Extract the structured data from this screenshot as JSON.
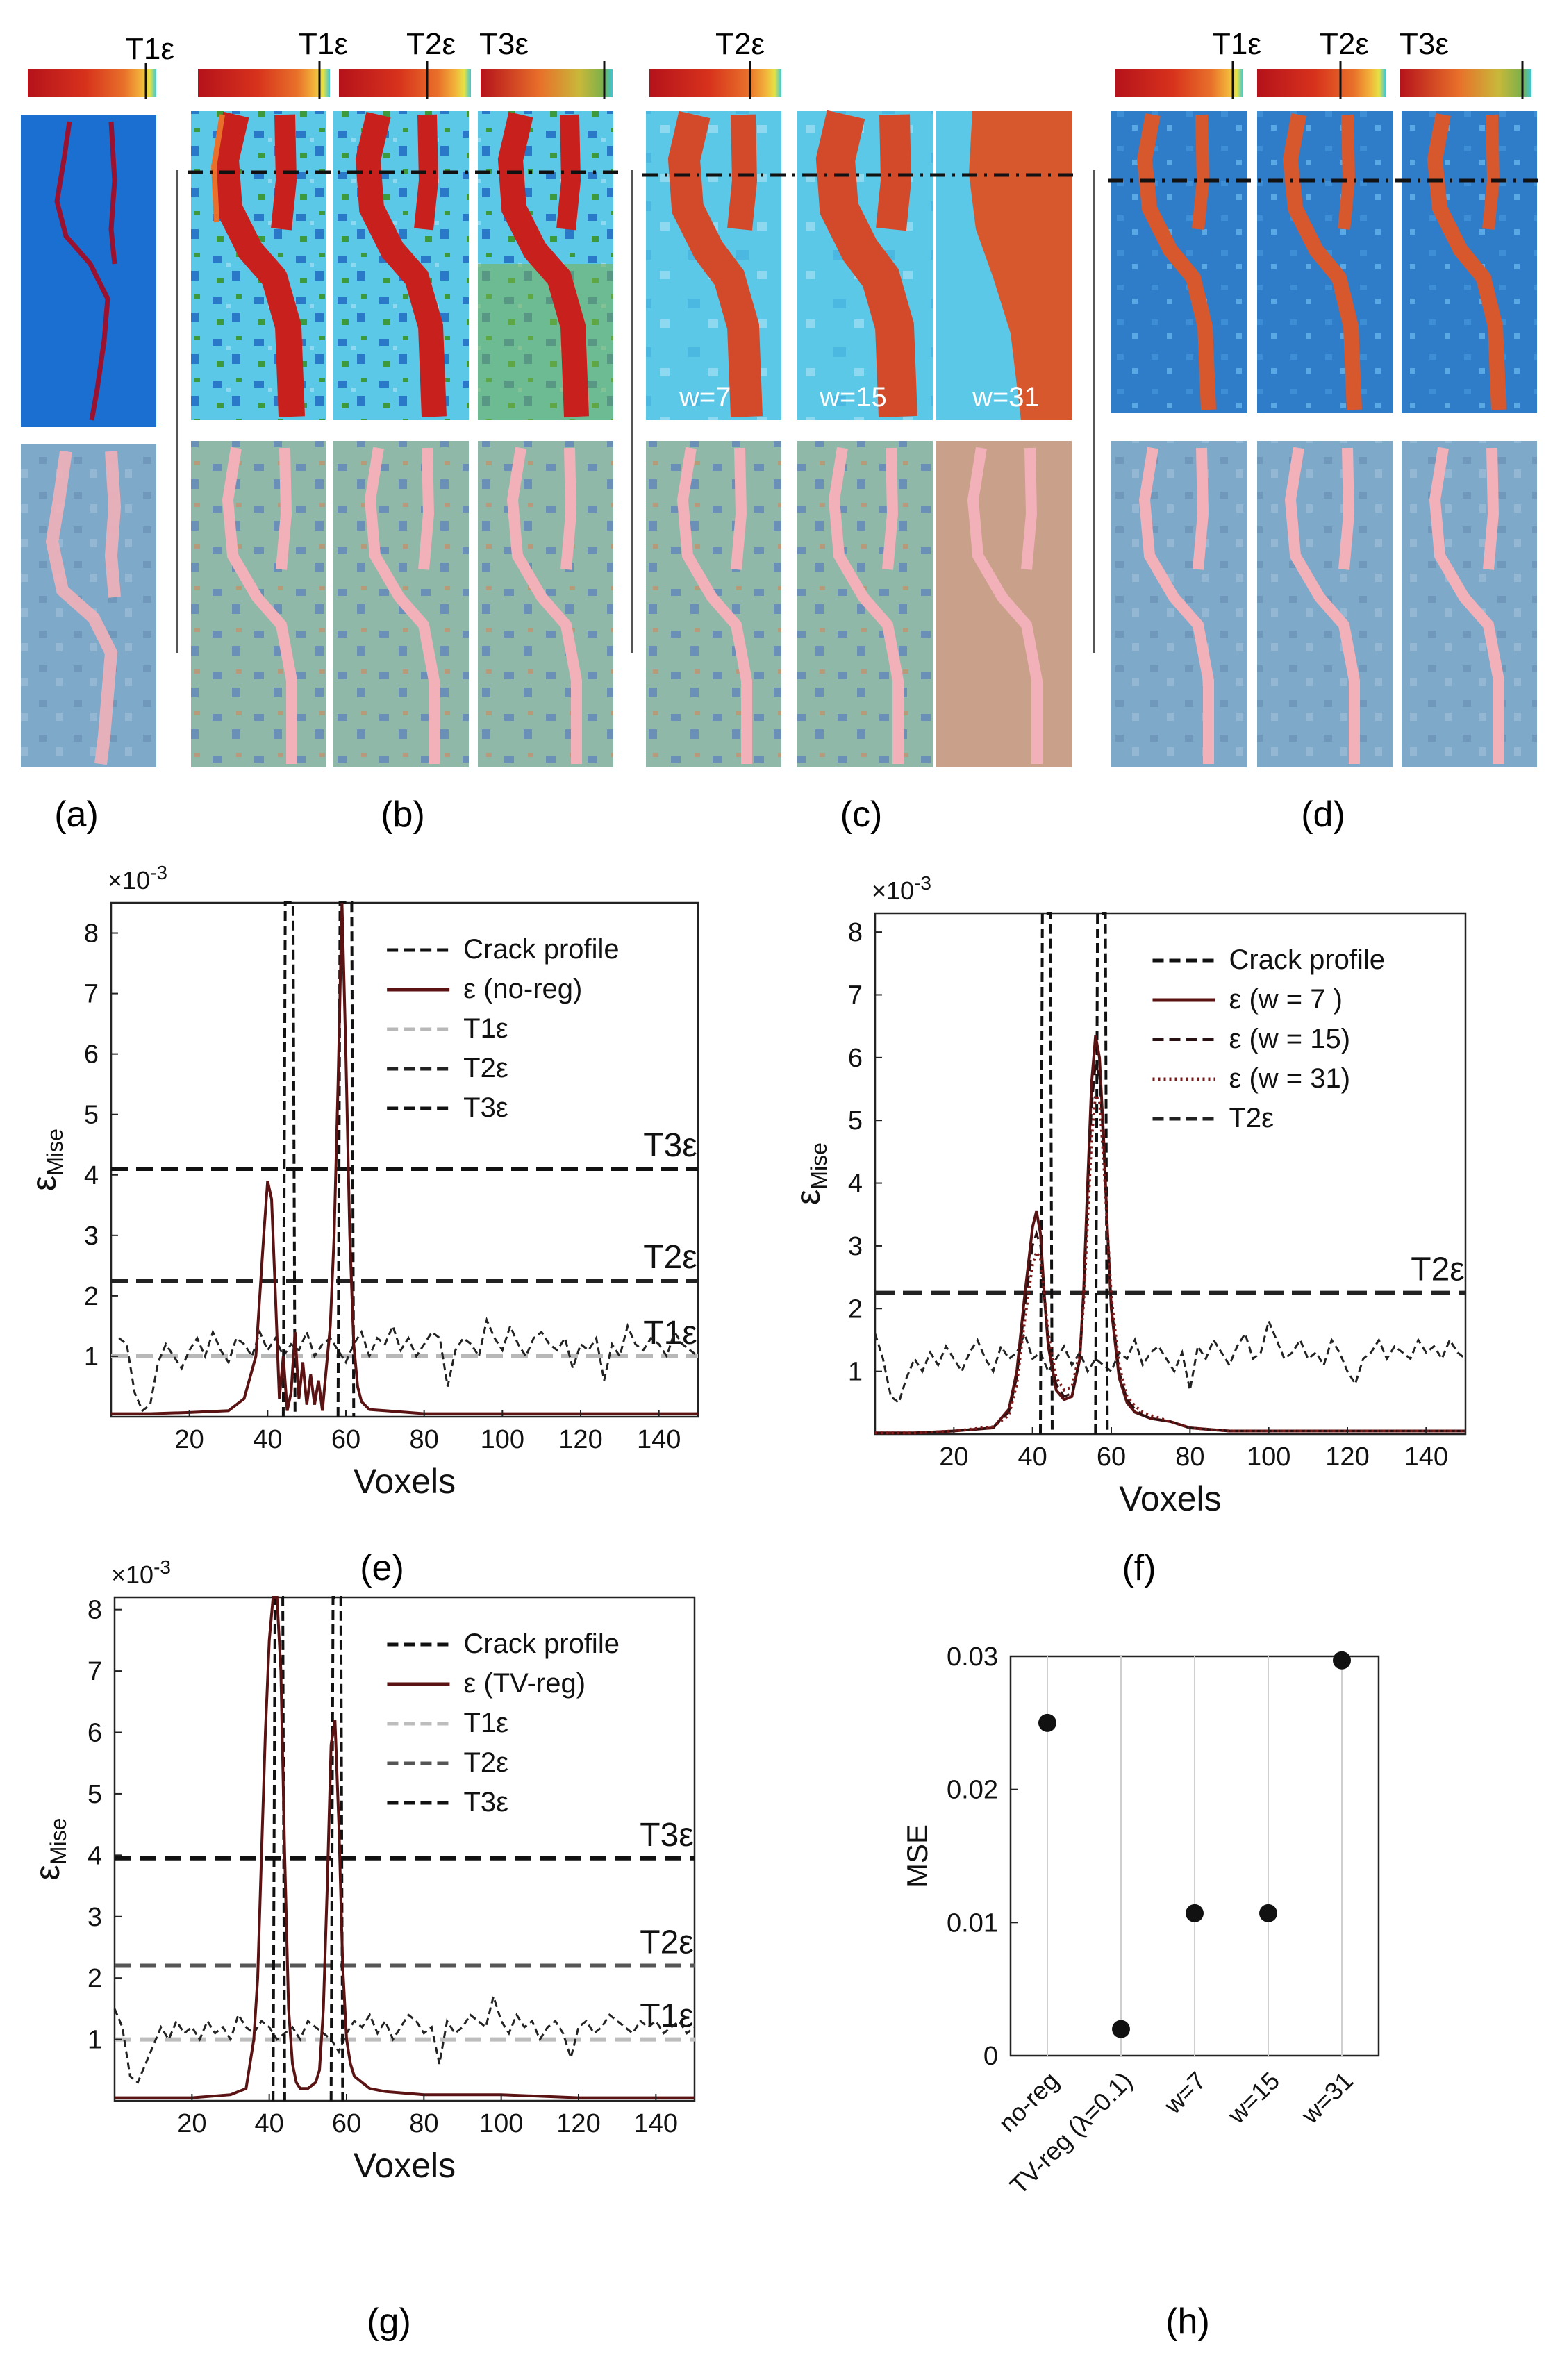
{
  "panel_labels": {
    "a": "(a)",
    "b": "(b)",
    "c": "(c)",
    "d": "(d)",
    "e": "(e)",
    "f": "(f)",
    "g": "(g)",
    "h": "(h)"
  },
  "images": {
    "colorbar_labels": {
      "a": [
        "T1ε"
      ],
      "b": [
        "T1ε",
        "T2ε",
        "T3ε"
      ],
      "c": [
        "T2ε"
      ],
      "d": [
        "T1ε",
        "T2ε",
        "T3ε"
      ]
    },
    "c_window_labels": [
      "w=7",
      "w=15",
      "w=31"
    ],
    "colors": {
      "hot": "#c8201c",
      "warm": "#e8702a",
      "cyan": "#5cc8e8",
      "blue": "#1a6fd0",
      "green": "#7bb04a",
      "mask": "#f2b0b8"
    }
  },
  "chart_data": [
    {
      "id": "e",
      "type": "line",
      "xlabel": "Voxels",
      "ylabel": "εMise",
      "y_exponent": "×10-3",
      "xlim": [
        0,
        150
      ],
      "ylim": [
        0,
        8.5
      ],
      "xticks": [
        20,
        40,
        60,
        80,
        100,
        120,
        140
      ],
      "yticks": [
        1,
        2,
        3,
        4,
        5,
        6,
        7,
        8
      ],
      "legend": [
        "Crack profile",
        "ε (no-reg)",
        "T1ε",
        "T2ε",
        "T3ε"
      ],
      "threshold_labels": [
        "T1ε",
        "T2ε",
        "T3ε"
      ],
      "thresholds": [
        1.0,
        2.25,
        4.1
      ],
      "crack_profile": {
        "x": [
          44,
          44.5,
          46.5,
          47,
          58,
          58.5,
          61.5,
          62
        ],
        "y": [
          0,
          8.5,
          8.5,
          0,
          0,
          8.5,
          8.5,
          0
        ]
      },
      "noise": {
        "x": [
          2,
          4,
          6,
          8,
          10,
          12,
          14,
          16,
          18,
          20,
          22,
          24,
          26,
          28,
          30,
          32,
          34,
          36,
          38,
          40,
          42,
          44,
          46,
          48,
          50,
          52,
          54,
          56,
          58,
          60,
          62,
          64,
          66,
          68,
          70,
          72,
          74,
          76,
          78,
          80,
          82,
          84,
          86,
          88,
          90,
          92,
          94,
          96,
          98,
          100,
          102,
          104,
          106,
          108,
          110,
          112,
          114,
          116,
          118,
          120,
          122,
          124,
          126,
          128,
          130,
          132,
          134,
          136,
          138,
          140,
          142,
          144,
          146,
          148,
          150
        ],
        "y": [
          1.3,
          1.2,
          0.4,
          0.1,
          0.2,
          0.9,
          1.2,
          1.0,
          0.8,
          1.1,
          1.3,
          1.0,
          1.4,
          1.1,
          0.9,
          1.3,
          1.2,
          1.0,
          1.4,
          1.1,
          1.3,
          1.0,
          1.2,
          1.1,
          1.4,
          1.0,
          1.2,
          1.3,
          1.1,
          0.9,
          1.2,
          1.4,
          1.0,
          1.3,
          1.2,
          1.5,
          1.1,
          1.3,
          1.0,
          1.2,
          1.4,
          1.3,
          0.5,
          1.1,
          1.3,
          1.2,
          1.0,
          1.6,
          1.3,
          1.1,
          1.5,
          1.2,
          1.0,
          1.3,
          1.4,
          1.2,
          1.1,
          1.3,
          0.8,
          1.2,
          1.1,
          1.3,
          0.6,
          1.2,
          1.0,
          1.5,
          1.2,
          1.1,
          1.3,
          1.2,
          1.0,
          1.4,
          1.2,
          1.1,
          1.0
        ]
      },
      "series": [
        {
          "name": "ε (no-reg)",
          "x": [
            0,
            10,
            20,
            30,
            34,
            37,
            39,
            40,
            41,
            42,
            43,
            44,
            45,
            46,
            47,
            48,
            49,
            50,
            51,
            52,
            53,
            54,
            55,
            56,
            57,
            58,
            59,
            60,
            61,
            62,
            63,
            64,
            66,
            70,
            80,
            100,
            120,
            140,
            150
          ],
          "y": [
            0.05,
            0.05,
            0.07,
            0.1,
            0.3,
            1.0,
            3.0,
            3.9,
            3.6,
            2.0,
            0.3,
            1.0,
            0.1,
            0.4,
            1.4,
            0.3,
            0.9,
            0.2,
            0.7,
            0.2,
            0.6,
            0.1,
            0.8,
            1.5,
            3.0,
            5.5,
            8.5,
            6.0,
            3.0,
            1.2,
            0.5,
            0.25,
            0.12,
            0.1,
            0.05,
            0.05,
            0.05,
            0.05,
            0.05
          ]
        }
      ]
    },
    {
      "id": "f",
      "type": "line",
      "xlabel": "Voxels",
      "ylabel": "εMise",
      "y_exponent": "×10-3",
      "xlim": [
        0,
        150
      ],
      "ylim": [
        0,
        8.3
      ],
      "xticks": [
        20,
        40,
        60,
        80,
        100,
        120,
        140
      ],
      "yticks": [
        1,
        2,
        3,
        4,
        5,
        6,
        7,
        8
      ],
      "legend": [
        "Crack profile",
        "ε (w = 7 )",
        "ε (w = 15)",
        "ε (w = 31)",
        "T2ε"
      ],
      "threshold_labels": [
        "T2ε"
      ],
      "thresholds": [
        2.25
      ],
      "crack_profile": {
        "x": [
          42,
          42.5,
          44.5,
          45,
          56,
          56.5,
          58.5,
          59
        ],
        "y": [
          0,
          8.3,
          8.3,
          0,
          0,
          8.3,
          8.3,
          0
        ]
      },
      "noise": {
        "x": [
          0,
          2,
          4,
          6,
          8,
          10,
          12,
          14,
          16,
          18,
          20,
          22,
          24,
          26,
          28,
          30,
          32,
          34,
          36,
          38,
          40,
          42,
          44,
          46,
          48,
          50,
          52,
          54,
          56,
          58,
          60,
          62,
          64,
          66,
          68,
          70,
          72,
          74,
          76,
          78,
          80,
          82,
          84,
          86,
          88,
          90,
          92,
          94,
          96,
          98,
          100,
          102,
          104,
          106,
          108,
          110,
          112,
          114,
          116,
          118,
          120,
          122,
          124,
          126,
          128,
          130,
          132,
          134,
          136,
          138,
          140,
          142,
          144,
          146,
          148,
          150
        ],
        "y": [
          1.6,
          1.2,
          0.6,
          0.5,
          0.9,
          1.2,
          1.0,
          1.3,
          1.1,
          1.4,
          1.2,
          1.0,
          1.3,
          1.5,
          1.2,
          1.0,
          1.4,
          1.2,
          1.3,
          1.6,
          1.2,
          1.3,
          1.0,
          1.2,
          1.4,
          1.1,
          1.3,
          1.0,
          1.2,
          1.1,
          1.0,
          1.3,
          1.2,
          1.5,
          1.1,
          1.3,
          1.4,
          1.2,
          1.0,
          1.3,
          0.7,
          1.4,
          1.2,
          1.5,
          1.3,
          1.1,
          1.4,
          1.6,
          1.2,
          1.3,
          1.8,
          1.5,
          1.2,
          1.3,
          1.5,
          1.2,
          1.3,
          1.1,
          1.5,
          1.3,
          1.0,
          0.8,
          1.2,
          1.3,
          1.5,
          1.2,
          1.4,
          1.3,
          1.2,
          1.5,
          1.3,
          1.4,
          1.2,
          1.5,
          1.3,
          1.2
        ]
      },
      "series": [
        {
          "name": "ε (w = 7 )",
          "x": [
            0,
            10,
            20,
            30,
            34,
            36,
            38,
            40,
            41,
            42,
            43,
            44,
            46,
            48,
            50,
            52,
            53,
            54,
            55,
            56,
            57,
            58,
            59,
            60,
            62,
            64,
            66,
            68,
            70,
            75,
            80,
            90,
            100,
            120,
            140,
            150
          ],
          "y": [
            0.02,
            0.02,
            0.05,
            0.1,
            0.4,
            1.0,
            2.2,
            3.3,
            3.55,
            3.2,
            2.2,
            1.4,
            0.7,
            0.55,
            0.6,
            1.2,
            2.3,
            4.0,
            5.6,
            6.35,
            6.0,
            4.8,
            3.3,
            2.0,
            0.9,
            0.5,
            0.35,
            0.3,
            0.25,
            0.2,
            0.1,
            0.05,
            0.05,
            0.05,
            0.05,
            0.05
          ]
        },
        {
          "name": "ε (w = 15)",
          "x": [
            0,
            10,
            20,
            30,
            34,
            36,
            38,
            40,
            41,
            42,
            43,
            44,
            46,
            48,
            50,
            52,
            53,
            54,
            55,
            56,
            57,
            58,
            59,
            60,
            62,
            64,
            66,
            68,
            70,
            75,
            80,
            90,
            100,
            120,
            140,
            150
          ],
          "y": [
            0.02,
            0.02,
            0.05,
            0.1,
            0.35,
            0.9,
            2.0,
            3.0,
            3.2,
            3.0,
            2.2,
            1.5,
            0.8,
            0.6,
            0.65,
            1.2,
            2.2,
            3.7,
            5.2,
            5.9,
            5.7,
            4.6,
            3.3,
            2.1,
            1.0,
            0.55,
            0.4,
            0.3,
            0.25,
            0.2,
            0.1,
            0.05,
            0.05,
            0.05,
            0.05,
            0.05
          ]
        },
        {
          "name": "ε (w = 31)",
          "x": [
            0,
            10,
            20,
            30,
            34,
            36,
            38,
            40,
            41,
            42,
            43,
            44,
            46,
            48,
            50,
            52,
            53,
            54,
            55,
            56,
            57,
            58,
            59,
            60,
            62,
            64,
            66,
            68,
            70,
            75,
            80,
            90,
            100,
            120,
            140,
            150
          ],
          "y": [
            0.02,
            0.02,
            0.05,
            0.12,
            0.3,
            0.8,
            1.8,
            2.7,
            2.9,
            2.8,
            2.2,
            1.6,
            0.9,
            0.7,
            0.75,
            1.3,
            2.1,
            3.4,
            4.7,
            5.4,
            5.3,
            4.4,
            3.3,
            2.2,
            1.1,
            0.6,
            0.45,
            0.35,
            0.3,
            0.2,
            0.1,
            0.05,
            0.05,
            0.05,
            0.05,
            0.05
          ]
        }
      ]
    },
    {
      "id": "g",
      "type": "line",
      "xlabel": "Voxels",
      "ylabel": "εMise",
      "y_exponent": "×10-3",
      "xlim": [
        0,
        150
      ],
      "ylim": [
        0,
        8.2
      ],
      "xticks": [
        20,
        40,
        60,
        80,
        100,
        120,
        140
      ],
      "yticks": [
        1,
        2,
        3,
        4,
        5,
        6,
        7,
        8
      ],
      "legend": [
        "Crack profile",
        "ε (TV-reg)",
        "T1ε",
        "T2ε",
        "T3ε"
      ],
      "threshold_labels": [
        "T1ε",
        "T2ε",
        "T3ε"
      ],
      "thresholds": [
        1.0,
        2.2,
        3.95
      ],
      "crack_profile": {
        "x": [
          41,
          41.5,
          43.5,
          44,
          56,
          56.5,
          58.5,
          59
        ],
        "y": [
          0,
          8.2,
          8.2,
          0,
          0,
          8.2,
          8.2,
          0
        ]
      },
      "noise": {
        "x": [
          0,
          2,
          4,
          6,
          8,
          10,
          12,
          14,
          16,
          18,
          20,
          22,
          24,
          26,
          28,
          30,
          32,
          34,
          36,
          38,
          40,
          42,
          44,
          46,
          48,
          50,
          52,
          54,
          56,
          58,
          60,
          62,
          64,
          66,
          68,
          70,
          72,
          74,
          76,
          78,
          80,
          82,
          84,
          86,
          88,
          90,
          92,
          94,
          96,
          98,
          100,
          102,
          104,
          106,
          108,
          110,
          112,
          114,
          116,
          118,
          120,
          122,
          124,
          126,
          128,
          130,
          132,
          134,
          136,
          138,
          140,
          142,
          144,
          146,
          148,
          150
        ],
        "y": [
          1.5,
          1.2,
          0.4,
          0.3,
          0.6,
          0.9,
          1.2,
          1.0,
          1.3,
          1.1,
          1.2,
          1.0,
          1.3,
          1.1,
          1.2,
          1.0,
          1.4,
          1.2,
          1.1,
          1.3,
          1.2,
          1.0,
          1.1,
          1.2,
          1.0,
          1.3,
          1.2,
          1.1,
          1.0,
          0.8,
          1.1,
          1.3,
          1.2,
          1.4,
          1.1,
          1.3,
          1.0,
          1.2,
          1.4,
          1.3,
          1.1,
          1.2,
          0.6,
          1.3,
          1.1,
          1.2,
          1.4,
          1.3,
          1.2,
          1.7,
          1.3,
          1.1,
          1.4,
          1.2,
          1.3,
          1.0,
          1.2,
          1.3,
          1.1,
          0.7,
          1.2,
          1.3,
          1.1,
          1.2,
          1.4,
          1.3,
          1.2,
          1.1,
          1.3,
          1.2,
          1.3,
          1.1,
          1.2,
          1.3,
          1.1,
          1.2
        ]
      },
      "series": [
        {
          "name": "ε (TV-reg)",
          "x": [
            0,
            10,
            20,
            30,
            34,
            36,
            37,
            38,
            39,
            40,
            41,
            42,
            43,
            44,
            45,
            46,
            47,
            48,
            50,
            52,
            53,
            54,
            55,
            56,
            57,
            58,
            59,
            60,
            61,
            62,
            64,
            66,
            70,
            80,
            100,
            120,
            140,
            150
          ],
          "y": [
            0.05,
            0.05,
            0.05,
            0.1,
            0.2,
            1.0,
            2.0,
            4.0,
            6.0,
            7.5,
            8.2,
            8.2,
            7.0,
            4.0,
            1.5,
            0.6,
            0.3,
            0.2,
            0.2,
            0.3,
            0.5,
            1.5,
            3.5,
            5.8,
            6.2,
            4.5,
            2.2,
            1.0,
            0.6,
            0.4,
            0.3,
            0.2,
            0.15,
            0.1,
            0.1,
            0.05,
            0.05,
            0.05
          ]
        }
      ]
    },
    {
      "id": "h",
      "type": "scatter",
      "ylabel": "MSE",
      "categories": [
        "no-reg",
        "TV-reg (λ=0.1)",
        "w=7",
        "w=15",
        "w=31"
      ],
      "values": [
        0.025,
        0.002,
        0.0107,
        0.0107,
        0.0297
      ],
      "ylim": [
        0,
        0.03
      ],
      "yticks": [
        0,
        0.01,
        0.02,
        0.03
      ],
      "ytick_labels": [
        "0",
        "0.01",
        "0.02",
        "0.03"
      ],
      "grid": "vertical"
    }
  ]
}
